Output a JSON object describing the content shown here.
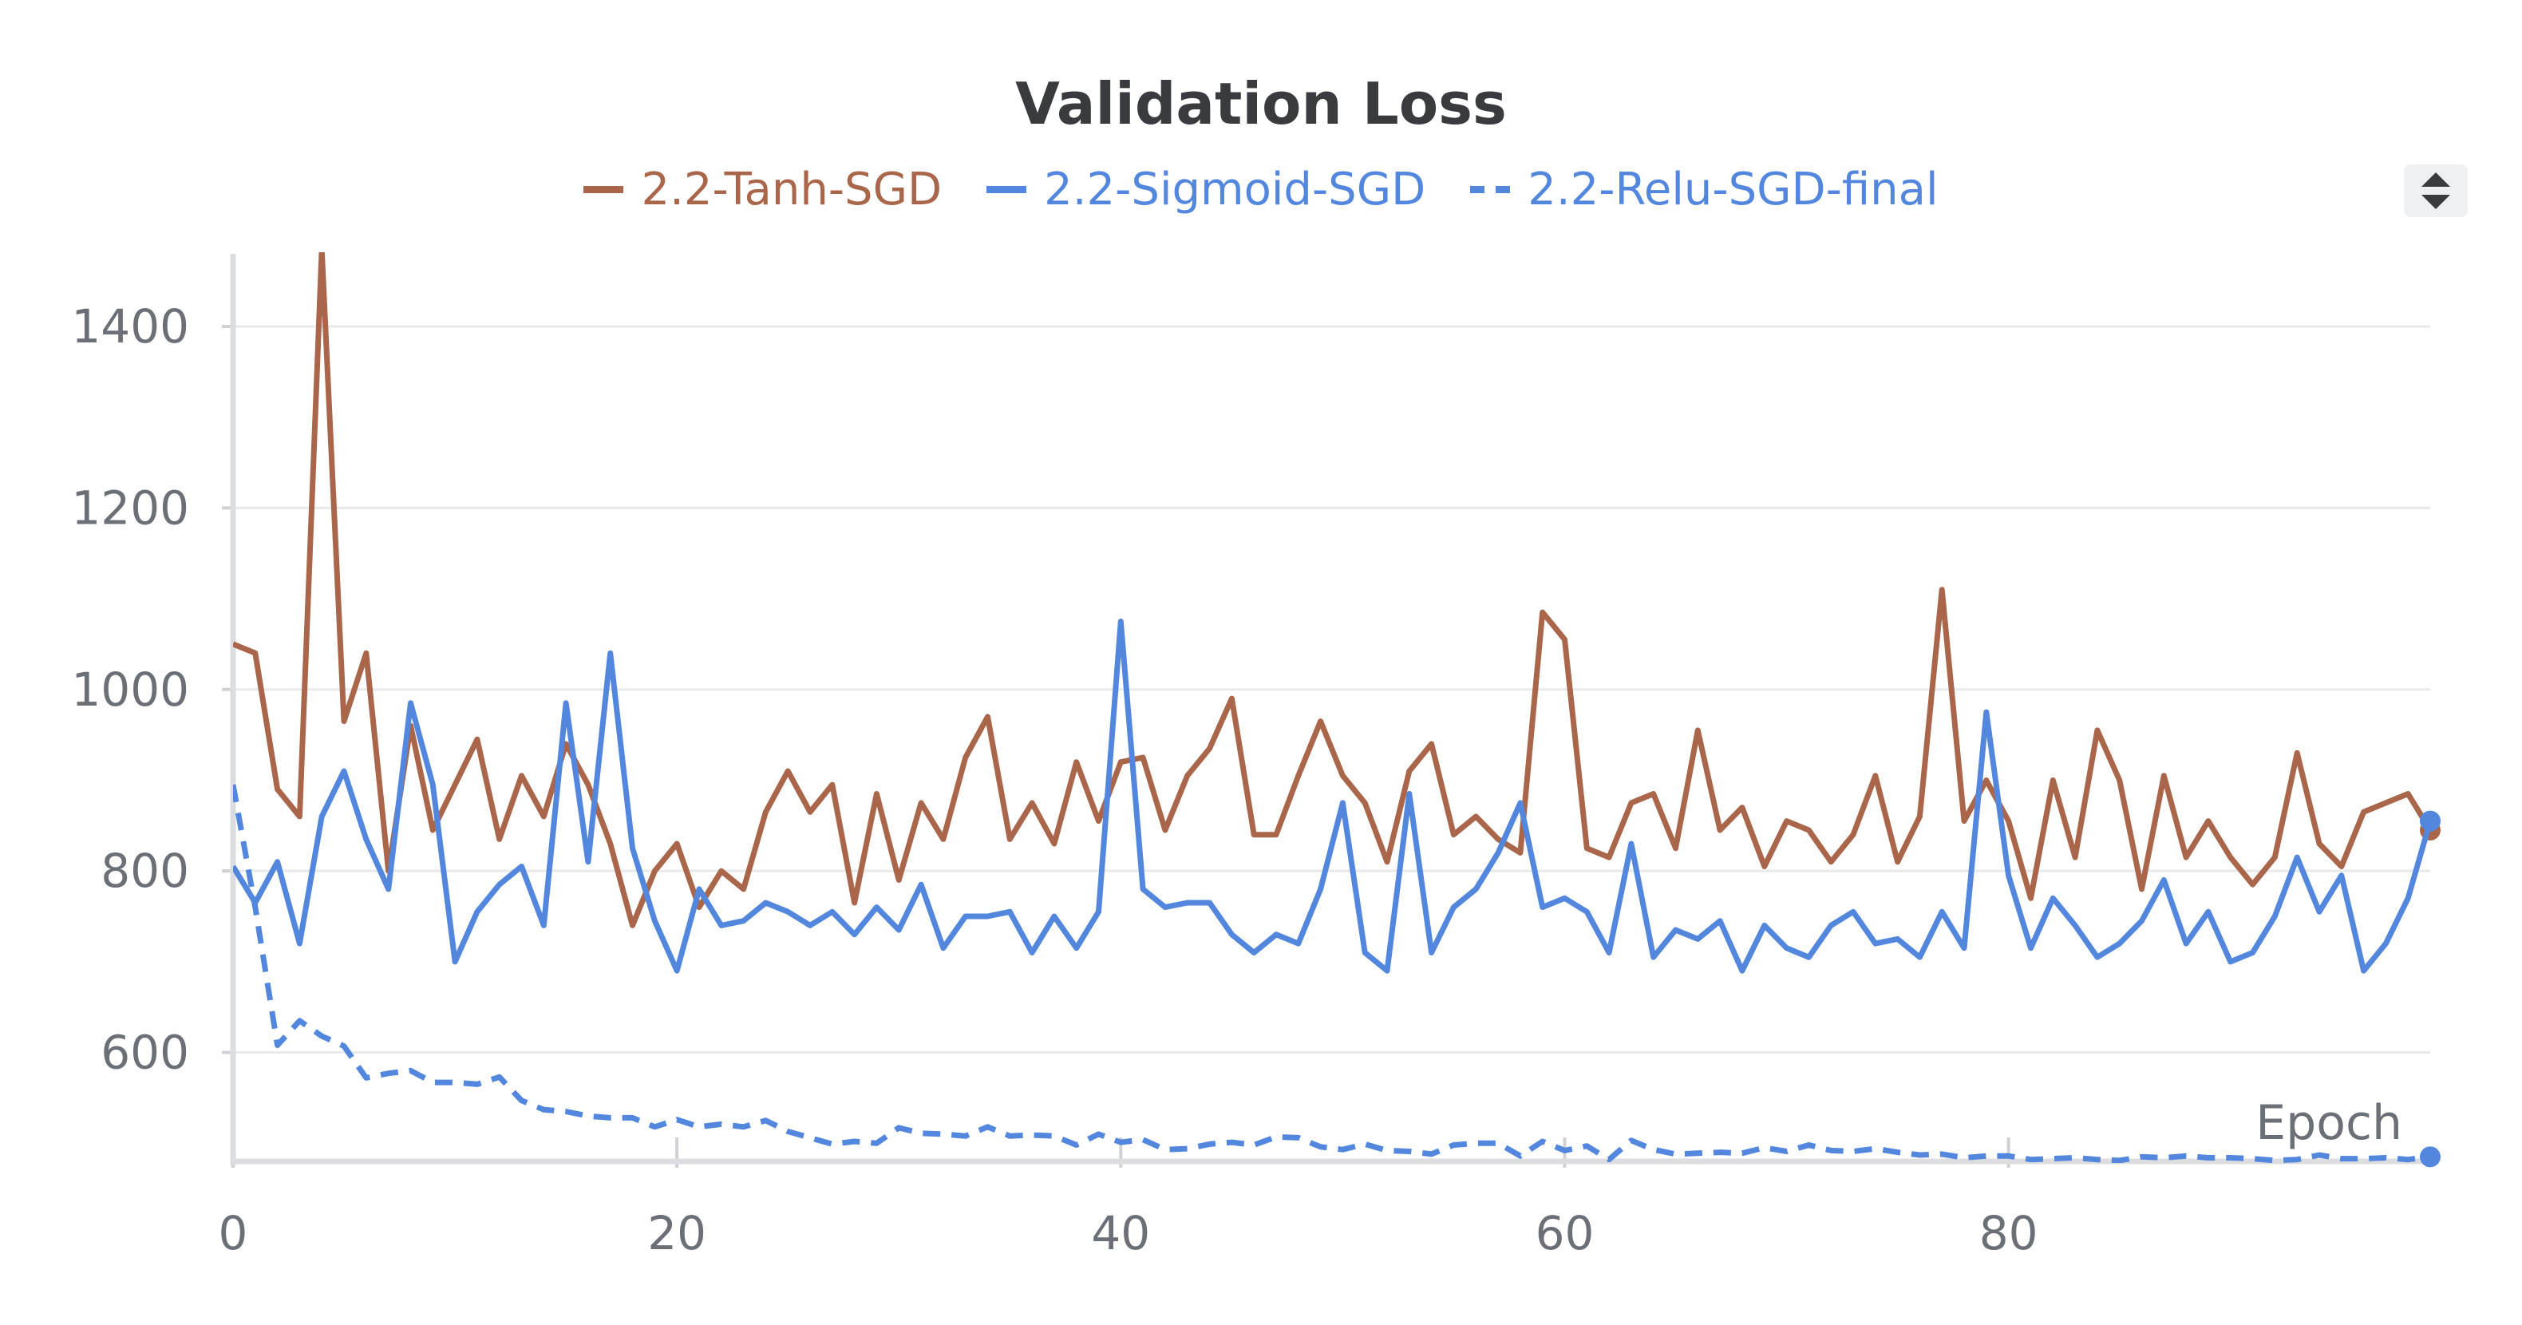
{
  "chart_data": {
    "type": "line",
    "title": "Validation Loss",
    "xlabel": "Epoch",
    "ylabel": "",
    "xlim": [
      0,
      99
    ],
    "ylim": [
      480,
      1480
    ],
    "xticks": [
      0,
      20,
      40,
      60,
      80
    ],
    "yticks": [
      600,
      800,
      1000,
      1200,
      1400
    ],
    "grid": true,
    "legend": "top-center",
    "series": [
      {
        "name": "2.2-Tanh-SGD",
        "color": "#a9664a",
        "dash": false,
        "values": [
          1050,
          1040,
          890,
          860,
          1485,
          965,
          1040,
          800,
          960,
          845,
          895,
          945,
          835,
          905,
          860,
          940,
          895,
          830,
          740,
          800,
          830,
          760,
          800,
          780,
          865,
          910,
          865,
          895,
          765,
          885,
          790,
          875,
          835,
          925,
          970,
          835,
          875,
          830,
          920,
          855,
          920,
          925,
          845,
          905,
          935,
          990,
          840,
          840,
          905,
          965,
          905,
          875,
          810,
          910,
          940,
          840,
          860,
          835,
          820,
          1085,
          1055,
          825,
          815,
          875,
          885,
          825,
          955,
          845,
          870,
          805,
          855,
          845,
          810,
          840,
          905,
          810,
          860,
          1110,
          855,
          900,
          855,
          770,
          900,
          815,
          955,
          900,
          780,
          905,
          815,
          855,
          815,
          785,
          815,
          930,
          830,
          805,
          865,
          875,
          885,
          845
        ]
      },
      {
        "name": "2.2-Sigmoid-SGD",
        "color": "#5387dd",
        "dash": false,
        "values": [
          805,
          765,
          810,
          720,
          860,
          910,
          835,
          780,
          985,
          895,
          700,
          755,
          785,
          805,
          740,
          985,
          810,
          1040,
          825,
          745,
          690,
          780,
          740,
          745,
          765,
          755,
          740,
          755,
          730,
          760,
          735,
          785,
          715,
          750,
          750,
          755,
          710,
          750,
          715,
          755,
          1075,
          780,
          760,
          765,
          765,
          730,
          710,
          730,
          720,
          780,
          875,
          710,
          690,
          885,
          710,
          760,
          780,
          820,
          875,
          760,
          770,
          755,
          710,
          830,
          705,
          735,
          725,
          745,
          690,
          740,
          715,
          705,
          740,
          755,
          720,
          725,
          705,
          755,
          715,
          975,
          795,
          715,
          770,
          740,
          705,
          720,
          745,
          790,
          720,
          755,
          700,
          710,
          750,
          815,
          755,
          795,
          690,
          720,
          770,
          855
        ]
      },
      {
        "name": "2.2-Relu-SGD-final",
        "color": "#5387dd",
        "dash": true,
        "values": [
          895,
          760,
          608,
          635,
          618,
          607,
          572,
          577,
          580,
          567,
          567,
          565,
          573,
          547,
          537,
          535,
          530,
          528,
          528,
          518,
          526,
          518,
          521,
          518,
          525,
          513,
          506,
          499,
          502,
          500,
          517,
          511,
          510,
          508,
          518,
          508,
          509,
          508,
          498,
          510,
          501,
          504,
          493,
          494,
          499,
          501,
          498,
          507,
          506,
          496,
          493,
          499,
          492,
          491,
          488,
          498,
          500,
          500,
          486,
          502,
          492,
          497,
          482,
          503,
          493,
          488,
          489,
          490,
          489,
          495,
          491,
          498,
          492,
          491,
          494,
          490,
          487,
          488,
          484,
          486,
          486,
          482,
          483,
          484,
          482,
          481,
          485,
          484,
          486,
          484,
          484,
          483,
          481,
          482,
          487,
          483,
          483,
          484,
          482,
          485
        ]
      }
    ]
  }
}
